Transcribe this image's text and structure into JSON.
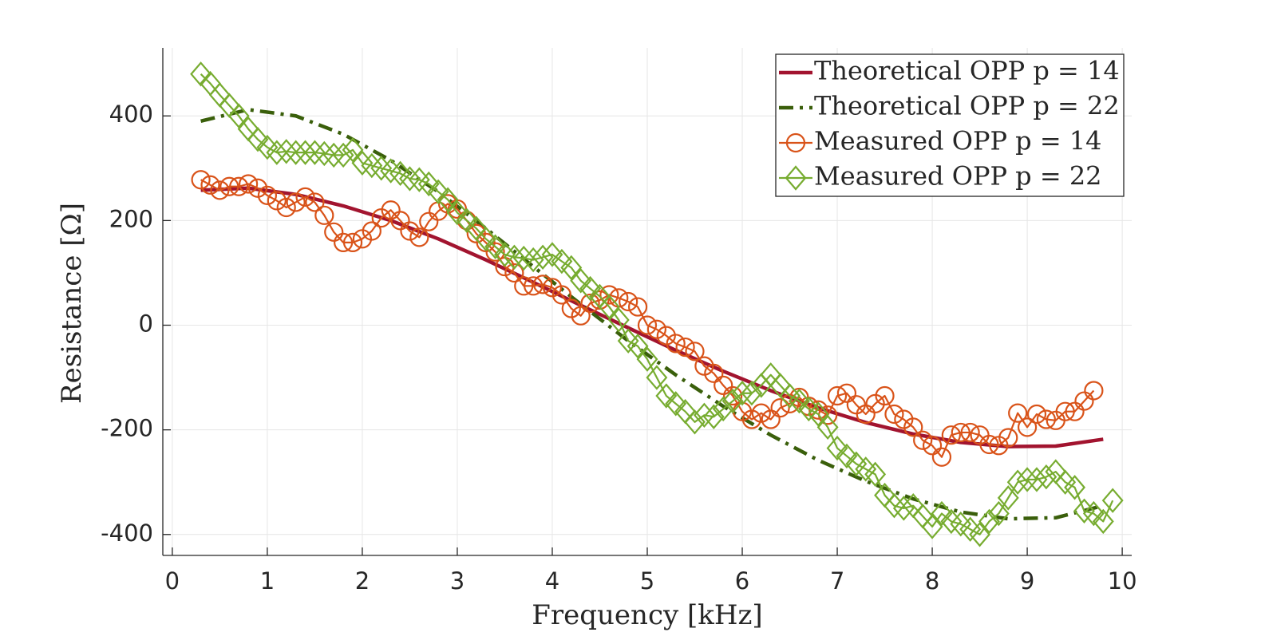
{
  "chart_data": {
    "type": "line",
    "x_label": "Frequency [kHz]",
    "y_label": "Resistance [Ω]",
    "xlim": [
      -0.1,
      10.1
    ],
    "ylim": [
      -440,
      530
    ],
    "xticks": [
      0,
      1,
      2,
      3,
      4,
      5,
      6,
      7,
      8,
      9,
      10
    ],
    "yticks": [
      -400,
      -200,
      0,
      200,
      400
    ],
    "grid": true,
    "legend": "upper right",
    "series": [
      {
        "name": "Theoretical OPP p = 14",
        "color": "#a2142f",
        "style": "solid",
        "x": [
          0.3,
          0.8,
          1.3,
          1.8,
          2.3,
          2.8,
          3.3,
          3.8,
          4.3,
          4.8,
          5.3,
          5.8,
          6.3,
          6.8,
          7.3,
          7.8,
          8.3,
          8.8,
          9.3,
          9.8
        ],
        "values": [
          258,
          262,
          250,
          228,
          200,
          165,
          125,
          82,
          38,
          -5,
          -48,
          -88,
          -125,
          -158,
          -186,
          -208,
          -224,
          -232,
          -231,
          -218
        ]
      },
      {
        "name": "Theoretical OPP p = 22",
        "color": "#3a5f0b",
        "style": "dashdot",
        "x": [
          0.3,
          0.8,
          1.3,
          1.8,
          2.3,
          2.8,
          3.3,
          3.8,
          4.3,
          4.8,
          5.3,
          5.8,
          6.3,
          6.8,
          7.3,
          7.8,
          8.3,
          8.8,
          9.3,
          9.8
        ],
        "values": [
          390,
          412,
          400,
          365,
          315,
          255,
          185,
          112,
          40,
          -30,
          -95,
          -155,
          -210,
          -258,
          -298,
          -332,
          -357,
          -370,
          -368,
          -345
        ]
      },
      {
        "name": "Measured OPP p = 14",
        "color": "#d95319",
        "style": "solid",
        "marker": "circle",
        "x": [
          0.3,
          0.4,
          0.5,
          0.6,
          0.7,
          0.8,
          0.9,
          1.0,
          1.1,
          1.2,
          1.3,
          1.4,
          1.5,
          1.6,
          1.7,
          1.8,
          1.9,
          2.0,
          2.1,
          2.2,
          2.3,
          2.4,
          2.5,
          2.6,
          2.7,
          2.8,
          2.9,
          3.0,
          3.1,
          3.2,
          3.3,
          3.4,
          3.5,
          3.6,
          3.7,
          3.8,
          3.9,
          4.0,
          4.1,
          4.2,
          4.3,
          4.4,
          4.5,
          4.6,
          4.7,
          4.8,
          4.9,
          5.0,
          5.1,
          5.2,
          5.3,
          5.4,
          5.5,
          5.6,
          5.7,
          5.8,
          5.9,
          6.0,
          6.1,
          6.2,
          6.3,
          6.4,
          6.5,
          6.6,
          6.7,
          6.8,
          6.9,
          7.0,
          7.1,
          7.2,
          7.3,
          7.4,
          7.5,
          7.6,
          7.7,
          7.8,
          7.9,
          8.0,
          8.1,
          8.2,
          8.3,
          8.4,
          8.5,
          8.6,
          8.7,
          8.8,
          8.9,
          9.0,
          9.1,
          9.2,
          9.3,
          9.4,
          9.5,
          9.6,
          9.7
        ],
        "values": [
          278,
          268,
          258,
          265,
          265,
          270,
          262,
          248,
          238,
          225,
          235,
          245,
          235,
          210,
          178,
          158,
          158,
          165,
          180,
          205,
          220,
          200,
          180,
          168,
          198,
          218,
          232,
          222,
          200,
          175,
          158,
          140,
          112,
          100,
          75,
          75,
          78,
          72,
          58,
          32,
          18,
          42,
          48,
          58,
          52,
          45,
          35,
          0,
          -8,
          -20,
          -35,
          -42,
          -50,
          -78,
          -92,
          -115,
          -135,
          -165,
          -180,
          -168,
          -180,
          -158,
          -150,
          -138,
          -155,
          -162,
          -172,
          -135,
          -130,
          -152,
          -170,
          -150,
          -135,
          -170,
          -180,
          -195,
          -220,
          -230,
          -252,
          -210,
          -205,
          -205,
          -210,
          -228,
          -230,
          -215,
          -168,
          -195,
          -170,
          -180,
          -182,
          -165,
          -165,
          -145,
          -125
        ]
      },
      {
        "name": "Measured OPP p = 22",
        "color": "#77ac30",
        "style": "solid",
        "marker": "diamond",
        "x": [
          0.3,
          0.4,
          0.5,
          0.6,
          0.7,
          0.8,
          0.9,
          1.0,
          1.1,
          1.2,
          1.3,
          1.4,
          1.5,
          1.6,
          1.7,
          1.8,
          1.9,
          2.0,
          2.1,
          2.2,
          2.3,
          2.4,
          2.5,
          2.6,
          2.7,
          2.8,
          2.9,
          3.0,
          3.1,
          3.2,
          3.3,
          3.4,
          3.5,
          3.6,
          3.7,
          3.8,
          3.9,
          4.0,
          4.1,
          4.2,
          4.3,
          4.4,
          4.5,
          4.6,
          4.7,
          4.8,
          4.9,
          5.0,
          5.1,
          5.2,
          5.3,
          5.4,
          5.5,
          5.6,
          5.7,
          5.8,
          5.9,
          6.0,
          6.1,
          6.2,
          6.3,
          6.4,
          6.5,
          6.6,
          6.7,
          6.8,
          6.9,
          7.0,
          7.1,
          7.2,
          7.3,
          7.4,
          7.5,
          7.6,
          7.7,
          7.8,
          7.9,
          8.0,
          8.1,
          8.2,
          8.3,
          8.4,
          8.5,
          8.6,
          8.7,
          8.8,
          8.9,
          9.0,
          9.1,
          9.2,
          9.3,
          9.4,
          9.5,
          9.6,
          9.7,
          9.8,
          9.9
        ],
        "values": [
          480,
          462,
          440,
          420,
          400,
          375,
          355,
          340,
          330,
          332,
          330,
          330,
          330,
          328,
          325,
          325,
          335,
          310,
          305,
          300,
          295,
          290,
          280,
          278,
          270,
          255,
          240,
          215,
          200,
          185,
          165,
          150,
          135,
          130,
          128,
          125,
          130,
          135,
          122,
          110,
          85,
          70,
          55,
          35,
          10,
          -30,
          -40,
          -65,
          -100,
          -135,
          -150,
          -165,
          -185,
          -172,
          -175,
          -160,
          -145,
          -130,
          -130,
          -115,
          -95,
          -115,
          -135,
          -145,
          -160,
          -170,
          -195,
          -235,
          -250,
          -265,
          -275,
          -285,
          -325,
          -345,
          -350,
          -345,
          -365,
          -385,
          -360,
          -375,
          -380,
          -390,
          -400,
          -375,
          -360,
          -330,
          -300,
          -295,
          -295,
          -290,
          -280,
          -300,
          -310,
          -355,
          -360,
          -375,
          -335
        ]
      }
    ]
  }
}
